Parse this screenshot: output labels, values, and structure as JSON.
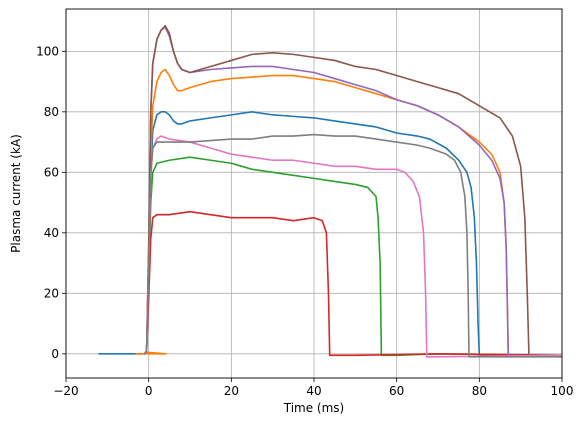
{
  "chart_data": {
    "type": "line",
    "title": "",
    "xlabel": "Time (ms)",
    "ylabel": "Plasma current (kA)",
    "xlim": [
      -20,
      100
    ],
    "ylim": [
      -8,
      114
    ],
    "xticks": [
      -20,
      0,
      20,
      40,
      60,
      80,
      100
    ],
    "yticks": [
      0,
      20,
      40,
      60,
      80,
      100
    ],
    "grid": true,
    "legend": "none",
    "series": [
      {
        "color": "#1f77b4",
        "points": [
          [
            -12,
            0
          ],
          [
            -1,
            0
          ],
          [
            -0.5,
            1
          ],
          [
            0,
            25
          ],
          [
            0.5,
            60
          ],
          [
            1,
            74
          ],
          [
            2,
            79
          ],
          [
            3,
            80
          ],
          [
            4,
            80
          ],
          [
            5,
            79
          ],
          [
            6,
            77
          ],
          [
            7,
            76
          ],
          [
            8,
            76
          ],
          [
            10,
            77
          ],
          [
            15,
            78
          ],
          [
            20,
            79
          ],
          [
            25,
            80
          ],
          [
            30,
            79
          ],
          [
            35,
            78.5
          ],
          [
            40,
            78
          ],
          [
            45,
            77
          ],
          [
            50,
            76
          ],
          [
            55,
            75
          ],
          [
            60,
            73
          ],
          [
            65,
            72
          ],
          [
            68,
            71
          ],
          [
            72,
            68
          ],
          [
            75,
            64
          ],
          [
            77,
            60
          ],
          [
            78,
            55
          ],
          [
            78.8,
            45
          ],
          [
            79.3,
            30
          ],
          [
            79.7,
            10
          ],
          [
            80,
            -0.5
          ],
          [
            85,
            -0.5
          ],
          [
            100,
            -0.5
          ]
        ]
      },
      {
        "color": "#ff7f0e",
        "points": [
          [
            -3,
            0
          ],
          [
            4,
            0
          ],
          [
            4.2,
            0
          ],
          [
            -0.5,
            0.5
          ],
          [
            0,
            28
          ],
          [
            0.5,
            65
          ],
          [
            1,
            82
          ],
          [
            2,
            90
          ],
          [
            3,
            93
          ],
          [
            4,
            94
          ],
          [
            5,
            92
          ],
          [
            6,
            89
          ],
          [
            7,
            87
          ],
          [
            8,
            87
          ],
          [
            10,
            88
          ],
          [
            15,
            90
          ],
          [
            20,
            91
          ],
          [
            25,
            91.5
          ],
          [
            30,
            92
          ],
          [
            35,
            92
          ],
          [
            40,
            91
          ],
          [
            45,
            90
          ],
          [
            50,
            88
          ],
          [
            55,
            86
          ],
          [
            60,
            84
          ],
          [
            65,
            82
          ],
          [
            70,
            79
          ],
          [
            75,
            75
          ],
          [
            80,
            70
          ],
          [
            83,
            66
          ],
          [
            85,
            60
          ],
          [
            86,
            50
          ],
          [
            86.5,
            35
          ],
          [
            86.8,
            15
          ],
          [
            87,
            -0.5
          ],
          [
            100,
            -0.5
          ]
        ]
      },
      {
        "color": "#2ca02c",
        "points": [
          [
            -1,
            0
          ],
          [
            -0.5,
            1
          ],
          [
            0,
            22
          ],
          [
            0.5,
            50
          ],
          [
            1,
            60
          ],
          [
            2,
            63
          ],
          [
            5,
            64
          ],
          [
            10,
            65
          ],
          [
            15,
            64
          ],
          [
            20,
            63
          ],
          [
            25,
            61
          ],
          [
            30,
            60
          ],
          [
            35,
            59
          ],
          [
            40,
            58
          ],
          [
            45,
            57
          ],
          [
            50,
            56
          ],
          [
            53,
            55
          ],
          [
            55,
            52
          ],
          [
            55.5,
            45
          ],
          [
            56,
            30
          ],
          [
            56.2,
            10
          ],
          [
            56.3,
            -0.5
          ],
          [
            60,
            -0.5
          ],
          [
            70,
            0
          ],
          [
            100,
            -0.5
          ]
        ]
      },
      {
        "color": "#d62728",
        "points": [
          [
            -1,
            0
          ],
          [
            -0.5,
            1
          ],
          [
            0,
            18
          ],
          [
            0.5,
            38
          ],
          [
            1,
            45
          ],
          [
            2,
            46
          ],
          [
            5,
            46
          ],
          [
            10,
            47
          ],
          [
            15,
            46
          ],
          [
            20,
            45
          ],
          [
            25,
            45
          ],
          [
            30,
            45
          ],
          [
            35,
            44
          ],
          [
            40,
            45
          ],
          [
            42,
            44
          ],
          [
            43,
            40
          ],
          [
            43.5,
            20
          ],
          [
            43.8,
            -0.5
          ],
          [
            50,
            -0.5
          ],
          [
            70,
            0
          ],
          [
            100,
            -0.5
          ]
        ]
      },
      {
        "color": "#9467bd",
        "points": [
          [
            -1,
            0
          ],
          [
            -0.5,
            1
          ],
          [
            0,
            35
          ],
          [
            0.5,
            80
          ],
          [
            1,
            96
          ],
          [
            2,
            104
          ],
          [
            3,
            107
          ],
          [
            4,
            108
          ],
          [
            5,
            105
          ],
          [
            6,
            100
          ],
          [
            7,
            96
          ],
          [
            8,
            94
          ],
          [
            10,
            93
          ],
          [
            15,
            94
          ],
          [
            20,
            94.5
          ],
          [
            25,
            95
          ],
          [
            30,
            95
          ],
          [
            35,
            94
          ],
          [
            40,
            93
          ],
          [
            45,
            91
          ],
          [
            50,
            89
          ],
          [
            55,
            87
          ],
          [
            60,
            84
          ],
          [
            65,
            82
          ],
          [
            70,
            79
          ],
          [
            75,
            75
          ],
          [
            80,
            69
          ],
          [
            83,
            64
          ],
          [
            85,
            58
          ],
          [
            86,
            50
          ],
          [
            86.5,
            35
          ],
          [
            86.8,
            15
          ],
          [
            87,
            -0.5
          ],
          [
            100,
            -1
          ]
        ]
      },
      {
        "color": "#8c564b",
        "points": [
          [
            -1,
            0
          ],
          [
            -0.5,
            1
          ],
          [
            0,
            35
          ],
          [
            0.5,
            80
          ],
          [
            1,
            96
          ],
          [
            2,
            104
          ],
          [
            3,
            107
          ],
          [
            4,
            108.5
          ],
          [
            5,
            106
          ],
          [
            6,
            100
          ],
          [
            7,
            96
          ],
          [
            8,
            94
          ],
          [
            10,
            93
          ],
          [
            15,
            95
          ],
          [
            20,
            97
          ],
          [
            25,
            99
          ],
          [
            30,
            99.5
          ],
          [
            35,
            99
          ],
          [
            40,
            98
          ],
          [
            45,
            97
          ],
          [
            50,
            95
          ],
          [
            55,
            94
          ],
          [
            60,
            92
          ],
          [
            65,
            90
          ],
          [
            70,
            88
          ],
          [
            75,
            86
          ],
          [
            80,
            82
          ],
          [
            85,
            78
          ],
          [
            88,
            72
          ],
          [
            90,
            62
          ],
          [
            91,
            45
          ],
          [
            91.6,
            20
          ],
          [
            92,
            -0.5
          ],
          [
            100,
            -0.5
          ]
        ]
      },
      {
        "color": "#e377c2",
        "points": [
          [
            -1,
            0
          ],
          [
            -0.5,
            1
          ],
          [
            0,
            28
          ],
          [
            0.5,
            58
          ],
          [
            1,
            68
          ],
          [
            2,
            71
          ],
          [
            3,
            72
          ],
          [
            5,
            71
          ],
          [
            10,
            70
          ],
          [
            15,
            68
          ],
          [
            20,
            66
          ],
          [
            25,
            65
          ],
          [
            30,
            64
          ],
          [
            35,
            64
          ],
          [
            40,
            63
          ],
          [
            45,
            62
          ],
          [
            50,
            62
          ],
          [
            55,
            61
          ],
          [
            60,
            61
          ],
          [
            62,
            60
          ],
          [
            64,
            57
          ],
          [
            65.5,
            52
          ],
          [
            66.5,
            40
          ],
          [
            67,
            20
          ],
          [
            67.3,
            -1
          ],
          [
            70,
            -1
          ],
          [
            100,
            -0.5
          ]
        ]
      },
      {
        "color": "#7f7f7f",
        "points": [
          [
            -1,
            0
          ],
          [
            -0.5,
            1
          ],
          [
            0,
            30
          ],
          [
            0.5,
            60
          ],
          [
            1,
            68
          ],
          [
            2,
            70
          ],
          [
            5,
            70
          ],
          [
            10,
            70
          ],
          [
            15,
            70.5
          ],
          [
            20,
            71
          ],
          [
            25,
            71
          ],
          [
            30,
            72
          ],
          [
            35,
            72
          ],
          [
            40,
            72.5
          ],
          [
            45,
            72
          ],
          [
            50,
            72
          ],
          [
            55,
            71
          ],
          [
            60,
            70
          ],
          [
            65,
            69
          ],
          [
            68,
            68
          ],
          [
            72,
            66
          ],
          [
            74,
            64
          ],
          [
            75.5,
            60
          ],
          [
            76.5,
            52
          ],
          [
            77,
            40
          ],
          [
            77.3,
            20
          ],
          [
            77.5,
            -1
          ],
          [
            80,
            -1
          ],
          [
            100,
            -1
          ]
        ]
      }
    ]
  }
}
